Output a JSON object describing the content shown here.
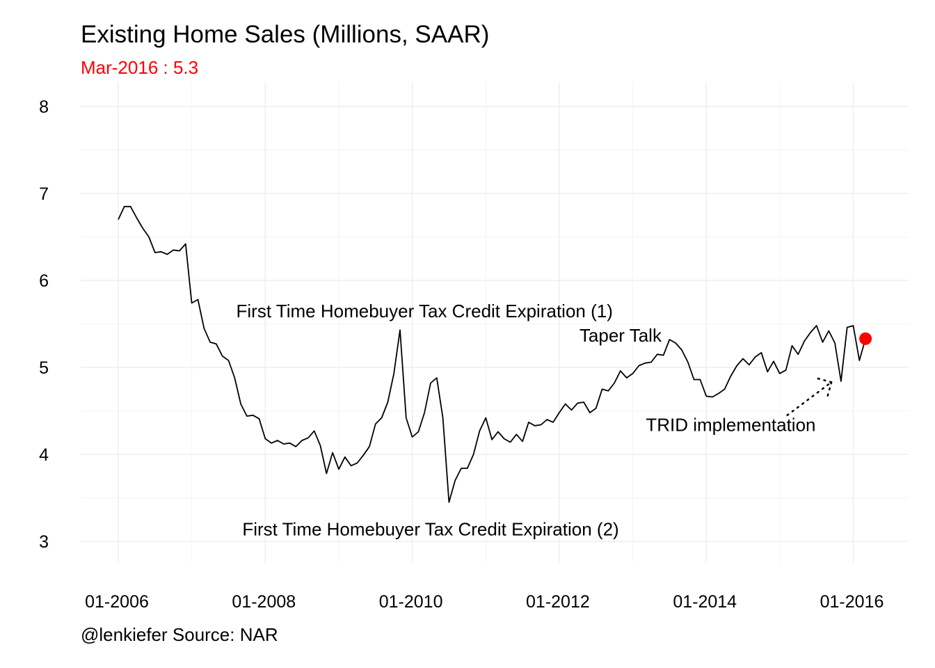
{
  "title": "Existing Home Sales (Millions, SAAR)",
  "subtitle": "Mar-2016 : 5.3",
  "caption": "@lenkiefer Source: NAR",
  "colors": {
    "line": "#000000",
    "highlight": "#ff0000",
    "grid": "#ebebeb"
  },
  "chart_data": {
    "type": "line",
    "x_start": "2006-01",
    "x_end": "2016-03",
    "x_ticks": [
      "01-2006",
      "01-2008",
      "01-2010",
      "01-2012",
      "01-2014",
      "01-2016"
    ],
    "y_ticks": [
      "3",
      "4",
      "5",
      "6",
      "7",
      "8"
    ],
    "ylim": [
      3,
      8
    ],
    "grid": true,
    "series": [
      {
        "values": [
          6.7,
          6.85,
          6.85,
          6.72,
          6.6,
          6.5,
          6.32,
          6.33,
          6.3,
          6.35,
          6.34,
          6.42,
          5.74,
          5.78,
          5.45,
          5.29,
          5.27,
          5.13,
          5.08,
          4.88,
          4.58,
          4.44,
          4.45,
          4.41,
          4.18,
          4.13,
          4.16,
          4.12,
          4.13,
          4.09,
          4.16,
          4.19,
          4.27,
          4.1,
          3.78,
          4.02,
          3.83,
          3.97,
          3.87,
          3.9,
          3.99,
          4.09,
          4.35,
          4.42,
          4.6,
          4.93,
          5.43,
          4.42,
          4.2,
          4.26,
          4.48,
          4.82,
          4.88,
          4.42,
          3.45,
          3.7,
          3.84,
          3.84,
          4.0,
          4.27,
          4.42,
          4.17,
          4.26,
          4.18,
          4.14,
          4.23,
          4.15,
          4.37,
          4.33,
          4.34,
          4.4,
          4.37,
          4.48,
          4.58,
          4.51,
          4.59,
          4.6,
          4.48,
          4.53,
          4.75,
          4.73,
          4.82,
          4.96,
          4.88,
          4.93,
          5.02,
          5.05,
          5.06,
          5.15,
          5.14,
          5.32,
          5.28,
          5.2,
          5.06,
          4.86,
          4.86,
          4.67,
          4.66,
          4.7,
          4.75,
          4.9,
          5.02,
          5.1,
          5.03,
          5.12,
          5.17,
          4.95,
          5.07,
          4.93,
          4.97,
          5.25,
          5.15,
          5.3,
          5.4,
          5.48,
          5.29,
          5.42,
          5.28,
          4.84,
          5.46,
          5.48,
          5.08,
          5.33
        ]
      }
    ],
    "highlight_point": {
      "x": "2016-03",
      "y": 5.33
    },
    "annotations": [
      {
        "text": "First Time Homebuyer Tax Credit Expiration (1)",
        "x": "2010-03",
        "y": 5.65
      },
      {
        "text": "Taper Talk",
        "x": "2012-11",
        "y": 5.37
      },
      {
        "text": "TRID implementation",
        "x": "2014-05",
        "y": 4.34
      },
      {
        "text": "First Time Homebuyer Tax Credit Expiration (2)",
        "x": "2010-04",
        "y": 3.14
      }
    ]
  }
}
